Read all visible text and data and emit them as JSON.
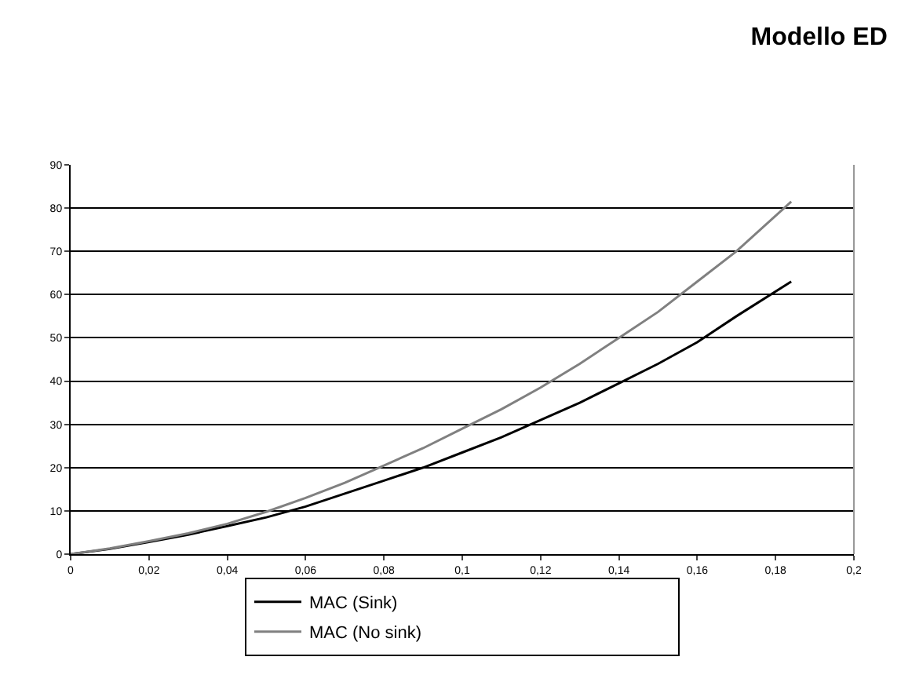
{
  "chart_data": {
    "type": "line",
    "title": "Modello ED",
    "series": [
      {
        "name": "MAC (Sink)",
        "color": "#000000",
        "x": [
          0,
          0.01,
          0.02,
          0.03,
          0.04,
          0.05,
          0.06,
          0.07,
          0.08,
          0.09,
          0.1,
          0.11,
          0.12,
          0.13,
          0.14,
          0.15,
          0.16,
          0.17,
          0.184
        ],
        "values": [
          0,
          1.2,
          2.8,
          4.5,
          6.5,
          8.5,
          11,
          14,
          17,
          20,
          23.5,
          27,
          31,
          35,
          39.5,
          44,
          49,
          55,
          63
        ]
      },
      {
        "name": "MAC (No sink)",
        "color": "#808080",
        "x": [
          0,
          0.01,
          0.02,
          0.03,
          0.04,
          0.05,
          0.06,
          0.07,
          0.08,
          0.09,
          0.1,
          0.11,
          0.12,
          0.13,
          0.14,
          0.15,
          0.16,
          0.17,
          0.184
        ],
        "values": [
          0,
          1.3,
          3,
          4.8,
          7,
          9.8,
          13,
          16.5,
          20.5,
          24.5,
          29,
          33.5,
          38.5,
          44,
          50,
          56,
          63,
          70,
          81.5
        ]
      }
    ],
    "xlim": [
      0,
      0.2
    ],
    "xticks": [
      {
        "value": 0,
        "label": "0"
      },
      {
        "value": 0.02,
        "label": "0,02"
      },
      {
        "value": 0.04,
        "label": "0,04"
      },
      {
        "value": 0.06,
        "label": "0,06"
      },
      {
        "value": 0.08,
        "label": "0,08"
      },
      {
        "value": 0.1,
        "label": "0,1"
      },
      {
        "value": 0.12,
        "label": "0,12"
      },
      {
        "value": 0.14,
        "label": "0,14"
      },
      {
        "value": 0.16,
        "label": "0,16"
      },
      {
        "value": 0.18,
        "label": "0,18"
      },
      {
        "value": 0.2,
        "label": "0,2"
      }
    ],
    "ylim": [
      0,
      90
    ],
    "yticks": [
      0,
      10,
      20,
      30,
      40,
      50,
      60,
      70,
      80,
      90
    ],
    "grid": "y",
    "legend": "bottom",
    "marker": "none",
    "line_style": "solid"
  }
}
